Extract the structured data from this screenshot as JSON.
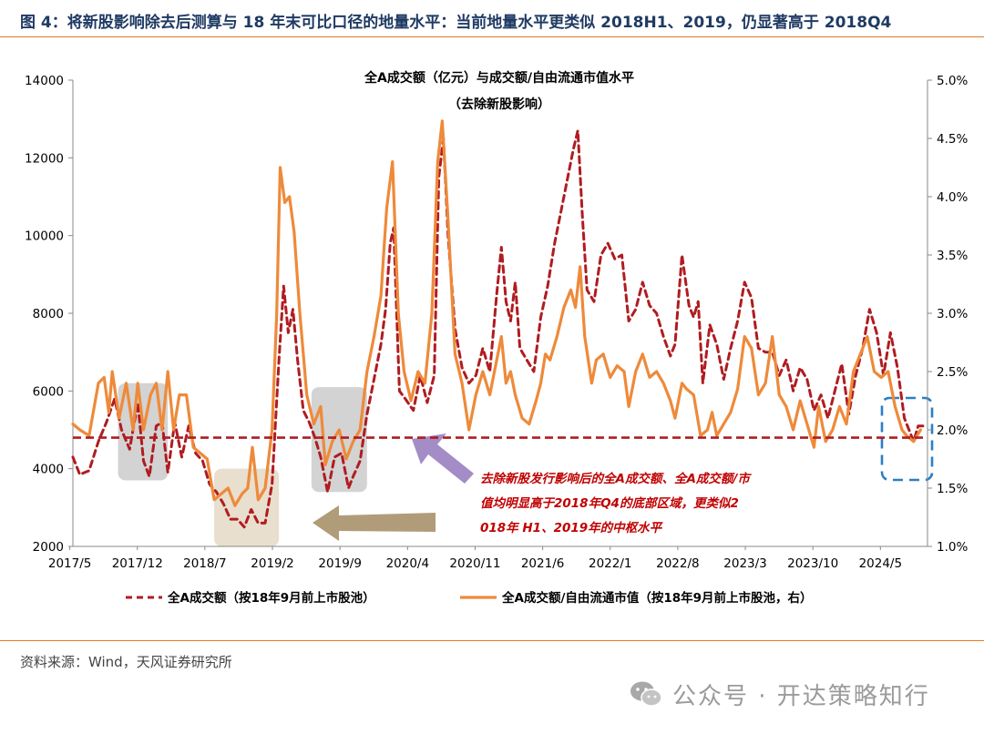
{
  "figure_title": "图 4：将新股影响除去后测算与 18 年末可比口径的地量水平：当前地量水平更类似 2018H1、2019，仍显著高于 2018Q4",
  "source": "资料来源：Wind，天风证券研究所",
  "watermark": "公众号 · 开达策略知行",
  "colors": {
    "turnover": "#b01c20",
    "ratio": "#ee8a3a",
    "accent": "#e07b28",
    "shade_gray": "#a8a8a8",
    "shade_tan": "#d9c9ad",
    "arrow_purple": "#9a7fc0",
    "arrow_tan": "#a8916b",
    "box_blue": "#2a7fc6",
    "annotation": "#c00000"
  },
  "chart_data": {
    "type": "line",
    "title": "全A成交额（亿元）与成交额/自由流通市值水平",
    "subtitle": "（去除新股影响）",
    "x_labels": [
      "2017/5",
      "2017/12",
      "2018/7",
      "2019/2",
      "2019/9",
      "2020/4",
      "2020/11",
      "2021/6",
      "2022/1",
      "2022/8",
      "2023/3",
      "2023/10",
      "2024/5"
    ],
    "y_left": {
      "min": 2000,
      "max": 14000,
      "step": 2000,
      "ticks": [
        "2000",
        "4000",
        "6000",
        "8000",
        "10000",
        "12000",
        "14000"
      ]
    },
    "y_right": {
      "min": 0.01,
      "max": 0.05,
      "step": 0.005,
      "ticks": [
        "1.0%",
        "1.5%",
        "2.0%",
        "2.5%",
        "3.0%",
        "3.5%",
        "4.0%",
        "4.5%",
        "5.0%"
      ]
    },
    "reference_line": {
      "value": 4800,
      "axis": "left"
    },
    "series": [
      {
        "name": "全A成交额（按18年9月前上市股池）",
        "axis": "left",
        "style": "dashed",
        "points": [
          [
            2017.36,
            4300
          ],
          [
            2017.42,
            3850
          ],
          [
            2017.5,
            3950
          ],
          [
            2017.58,
            4700
          ],
          [
            2017.65,
            5200
          ],
          [
            2017.72,
            5800
          ],
          [
            2017.78,
            5000
          ],
          [
            2017.85,
            4500
          ],
          [
            2017.92,
            5700
          ],
          [
            2017.97,
            4200
          ],
          [
            2018.02,
            3800
          ],
          [
            2018.08,
            5100
          ],
          [
            2018.13,
            5200
          ],
          [
            2018.18,
            3900
          ],
          [
            2018.24,
            5200
          ],
          [
            2018.3,
            4300
          ],
          [
            2018.36,
            5100
          ],
          [
            2018.42,
            4400
          ],
          [
            2018.48,
            4200
          ],
          [
            2018.54,
            3600
          ],
          [
            2018.6,
            3400
          ],
          [
            2018.66,
            3100
          ],
          [
            2018.72,
            2700
          ],
          [
            2018.78,
            2700
          ],
          [
            2018.84,
            2500
          ],
          [
            2018.9,
            2950
          ],
          [
            2018.96,
            2600
          ],
          [
            2019.02,
            2600
          ],
          [
            2019.08,
            3600
          ],
          [
            2019.14,
            6800
          ],
          [
            2019.18,
            8700
          ],
          [
            2019.22,
            7500
          ],
          [
            2019.26,
            8100
          ],
          [
            2019.3,
            6800
          ],
          [
            2019.35,
            5500
          ],
          [
            2019.4,
            5200
          ],
          [
            2019.45,
            4800
          ],
          [
            2019.5,
            4300
          ],
          [
            2019.56,
            3400
          ],
          [
            2019.62,
            4300
          ],
          [
            2019.68,
            4400
          ],
          [
            2019.74,
            3500
          ],
          [
            2019.78,
            3800
          ],
          [
            2019.84,
            4200
          ],
          [
            2019.9,
            5400
          ],
          [
            2019.96,
            6300
          ],
          [
            2020.02,
            7200
          ],
          [
            2020.06,
            8100
          ],
          [
            2020.1,
            9800
          ],
          [
            2020.13,
            10200
          ],
          [
            2020.18,
            6000
          ],
          [
            2020.23,
            5800
          ],
          [
            2020.3,
            5500
          ],
          [
            2020.36,
            6400
          ],
          [
            2020.42,
            5700
          ],
          [
            2020.48,
            6400
          ],
          [
            2020.52,
            11500
          ],
          [
            2020.56,
            12500
          ],
          [
            2020.6,
            10000
          ],
          [
            2020.66,
            7600
          ],
          [
            2020.72,
            6600
          ],
          [
            2020.78,
            6200
          ],
          [
            2020.84,
            6400
          ],
          [
            2020.9,
            7100
          ],
          [
            2020.96,
            6500
          ],
          [
            2021.02,
            8500
          ],
          [
            2021.06,
            9700
          ],
          [
            2021.1,
            8300
          ],
          [
            2021.14,
            7800
          ],
          [
            2021.18,
            8800
          ],
          [
            2021.22,
            7100
          ],
          [
            2021.28,
            6800
          ],
          [
            2021.34,
            6500
          ],
          [
            2021.4,
            7900
          ],
          [
            2021.46,
            8700
          ],
          [
            2021.52,
            9800
          ],
          [
            2021.58,
            10700
          ],
          [
            2021.64,
            11600
          ],
          [
            2021.68,
            12200
          ],
          [
            2021.72,
            12700
          ],
          [
            2021.76,
            10500
          ],
          [
            2021.8,
            8600
          ],
          [
            2021.86,
            8300
          ],
          [
            2021.92,
            9500
          ],
          [
            2021.98,
            9800
          ],
          [
            2022.04,
            9400
          ],
          [
            2022.1,
            9500
          ],
          [
            2022.16,
            7800
          ],
          [
            2022.22,
            8100
          ],
          [
            2022.28,
            8800
          ],
          [
            2022.34,
            8200
          ],
          [
            2022.4,
            8000
          ],
          [
            2022.46,
            7400
          ],
          [
            2022.52,
            6900
          ],
          [
            2022.56,
            7200
          ],
          [
            2022.62,
            9500
          ],
          [
            2022.68,
            8200
          ],
          [
            2022.72,
            7900
          ],
          [
            2022.76,
            8300
          ],
          [
            2022.8,
            6200
          ],
          [
            2022.86,
            7700
          ],
          [
            2022.92,
            7200
          ],
          [
            2022.98,
            6300
          ],
          [
            2023.04,
            7100
          ],
          [
            2023.1,
            7800
          ],
          [
            2023.16,
            8800
          ],
          [
            2023.22,
            8400
          ],
          [
            2023.28,
            7100
          ],
          [
            2023.34,
            7000
          ],
          [
            2023.4,
            7000
          ],
          [
            2023.46,
            6400
          ],
          [
            2023.52,
            6800
          ],
          [
            2023.58,
            6000
          ],
          [
            2023.64,
            6600
          ],
          [
            2023.7,
            6300
          ],
          [
            2023.76,
            5500
          ],
          [
            2023.82,
            5900
          ],
          [
            2023.88,
            5300
          ],
          [
            2023.94,
            6000
          ],
          [
            2024.0,
            6700
          ],
          [
            2024.06,
            5400
          ],
          [
            2024.12,
            6400
          ],
          [
            2024.18,
            7100
          ],
          [
            2024.24,
            8100
          ],
          [
            2024.3,
            7500
          ],
          [
            2024.36,
            6400
          ],
          [
            2024.42,
            7500
          ],
          [
            2024.48,
            6600
          ],
          [
            2024.54,
            5300
          ],
          [
            2024.58,
            5000
          ],
          [
            2024.62,
            4700
          ],
          [
            2024.66,
            5100
          ],
          [
            2024.7,
            5100
          ]
        ]
      },
      {
        "name": "全A成交额/自由流通市值（按18年9月前上市股池，右）",
        "axis": "right",
        "style": "solid",
        "points": [
          [
            2017.36,
            0.0205
          ],
          [
            2017.42,
            0.02
          ],
          [
            2017.5,
            0.0195
          ],
          [
            2017.58,
            0.024
          ],
          [
            2017.63,
            0.0245
          ],
          [
            2017.67,
            0.0215
          ],
          [
            2017.7,
            0.025
          ],
          [
            2017.76,
            0.021
          ],
          [
            2017.82,
            0.024
          ],
          [
            2017.88,
            0.02
          ],
          [
            2017.92,
            0.024
          ],
          [
            2017.97,
            0.02
          ],
          [
            2018.03,
            0.023
          ],
          [
            2018.08,
            0.024
          ],
          [
            2018.13,
            0.02
          ],
          [
            2018.18,
            0.025
          ],
          [
            2018.23,
            0.02
          ],
          [
            2018.28,
            0.023
          ],
          [
            2018.34,
            0.023
          ],
          [
            2018.4,
            0.0185
          ],
          [
            2018.46,
            0.018
          ],
          [
            2018.52,
            0.0175
          ],
          [
            2018.58,
            0.014
          ],
          [
            2018.64,
            0.0145
          ],
          [
            2018.7,
            0.015
          ],
          [
            2018.76,
            0.0135
          ],
          [
            2018.82,
            0.0145
          ],
          [
            2018.87,
            0.015
          ],
          [
            2018.91,
            0.0185
          ],
          [
            2018.96,
            0.014
          ],
          [
            2019.02,
            0.015
          ],
          [
            2019.08,
            0.02
          ],
          [
            2019.12,
            0.03
          ],
          [
            2019.15,
            0.0425
          ],
          [
            2019.19,
            0.0395
          ],
          [
            2019.23,
            0.04
          ],
          [
            2019.27,
            0.037
          ],
          [
            2019.32,
            0.03
          ],
          [
            2019.38,
            0.023
          ],
          [
            2019.44,
            0.0205
          ],
          [
            2019.5,
            0.022
          ],
          [
            2019.54,
            0.017
          ],
          [
            2019.6,
            0.019
          ],
          [
            2019.66,
            0.02
          ],
          [
            2019.72,
            0.0175
          ],
          [
            2019.78,
            0.019
          ],
          [
            2019.84,
            0.02
          ],
          [
            2019.9,
            0.025
          ],
          [
            2019.96,
            0.028
          ],
          [
            2020.02,
            0.0315
          ],
          [
            2020.07,
            0.039
          ],
          [
            2020.12,
            0.043
          ],
          [
            2020.17,
            0.03
          ],
          [
            2020.22,
            0.025
          ],
          [
            2020.28,
            0.0225
          ],
          [
            2020.34,
            0.025
          ],
          [
            2020.4,
            0.024
          ],
          [
            2020.46,
            0.03
          ],
          [
            2020.51,
            0.043
          ],
          [
            2020.55,
            0.0465
          ],
          [
            2020.6,
            0.038
          ],
          [
            2020.66,
            0.0265
          ],
          [
            2020.72,
            0.024
          ],
          [
            2020.78,
            0.02
          ],
          [
            2020.84,
            0.023
          ],
          [
            2020.9,
            0.025
          ],
          [
            2020.96,
            0.023
          ],
          [
            2021.02,
            0.026
          ],
          [
            2021.06,
            0.028
          ],
          [
            2021.1,
            0.024
          ],
          [
            2021.14,
            0.025
          ],
          [
            2021.18,
            0.023
          ],
          [
            2021.24,
            0.021
          ],
          [
            2021.3,
            0.0205
          ],
          [
            2021.36,
            0.0225
          ],
          [
            2021.4,
            0.024
          ],
          [
            2021.44,
            0.0265
          ],
          [
            2021.48,
            0.026
          ],
          [
            2021.54,
            0.028
          ],
          [
            2021.6,
            0.0305
          ],
          [
            2021.66,
            0.032
          ],
          [
            2021.7,
            0.0305
          ],
          [
            2021.74,
            0.034
          ],
          [
            2021.78,
            0.028
          ],
          [
            2021.84,
            0.024
          ],
          [
            2021.88,
            0.026
          ],
          [
            2021.94,
            0.0265
          ],
          [
            2022.0,
            0.0245
          ],
          [
            2022.06,
            0.0255
          ],
          [
            2022.12,
            0.025
          ],
          [
            2022.16,
            0.022
          ],
          [
            2022.22,
            0.025
          ],
          [
            2022.28,
            0.0265
          ],
          [
            2022.34,
            0.0245
          ],
          [
            2022.4,
            0.025
          ],
          [
            2022.46,
            0.024
          ],
          [
            2022.52,
            0.0225
          ],
          [
            2022.56,
            0.021
          ],
          [
            2022.62,
            0.024
          ],
          [
            2022.66,
            0.0235
          ],
          [
            2022.72,
            0.023
          ],
          [
            2022.78,
            0.0195
          ],
          [
            2022.84,
            0.02
          ],
          [
            2022.88,
            0.0215
          ],
          [
            2022.92,
            0.0195
          ],
          [
            2022.98,
            0.0205
          ],
          [
            2023.04,
            0.0215
          ],
          [
            2023.1,
            0.0235
          ],
          [
            2023.16,
            0.028
          ],
          [
            2023.22,
            0.027
          ],
          [
            2023.28,
            0.023
          ],
          [
            2023.34,
            0.024
          ],
          [
            2023.4,
            0.028
          ],
          [
            2023.46,
            0.023
          ],
          [
            2023.52,
            0.022
          ],
          [
            2023.58,
            0.02
          ],
          [
            2023.64,
            0.0225
          ],
          [
            2023.7,
            0.0205
          ],
          [
            2023.76,
            0.0185
          ],
          [
            2023.8,
            0.022
          ],
          [
            2023.86,
            0.019
          ],
          [
            2023.92,
            0.02
          ],
          [
            2023.98,
            0.022
          ],
          [
            2024.04,
            0.0205
          ],
          [
            2024.1,
            0.025
          ],
          [
            2024.16,
            0.0265
          ],
          [
            2024.22,
            0.028
          ],
          [
            2024.28,
            0.025
          ],
          [
            2024.34,
            0.0245
          ],
          [
            2024.4,
            0.025
          ],
          [
            2024.46,
            0.022
          ],
          [
            2024.52,
            0.02
          ],
          [
            2024.56,
            0.0195
          ],
          [
            2024.62,
            0.019
          ],
          [
            2024.68,
            0.02
          ]
        ]
      }
    ],
    "highlight_regions": [
      {
        "kind": "gray",
        "x_start": 2017.75,
        "x_end": 2018.18,
        "y_top": 6200,
        "y_bottom": 3700
      },
      {
        "kind": "tan",
        "x_start": 2018.58,
        "x_end": 2019.14,
        "y_top": 4000,
        "y_bottom": 2000
      },
      {
        "kind": "gray",
        "x_start": 2019.42,
        "x_end": 2019.9,
        "y_top": 6100,
        "y_bottom": 3400
      }
    ],
    "annotation": "去除新股发行影响后的全A成交额、全A成交额/市值均明显高于2018年Q4的底部区域，更类似2018年 H1、2019年的中枢水平",
    "grid": false,
    "legend_position": "bottom"
  }
}
